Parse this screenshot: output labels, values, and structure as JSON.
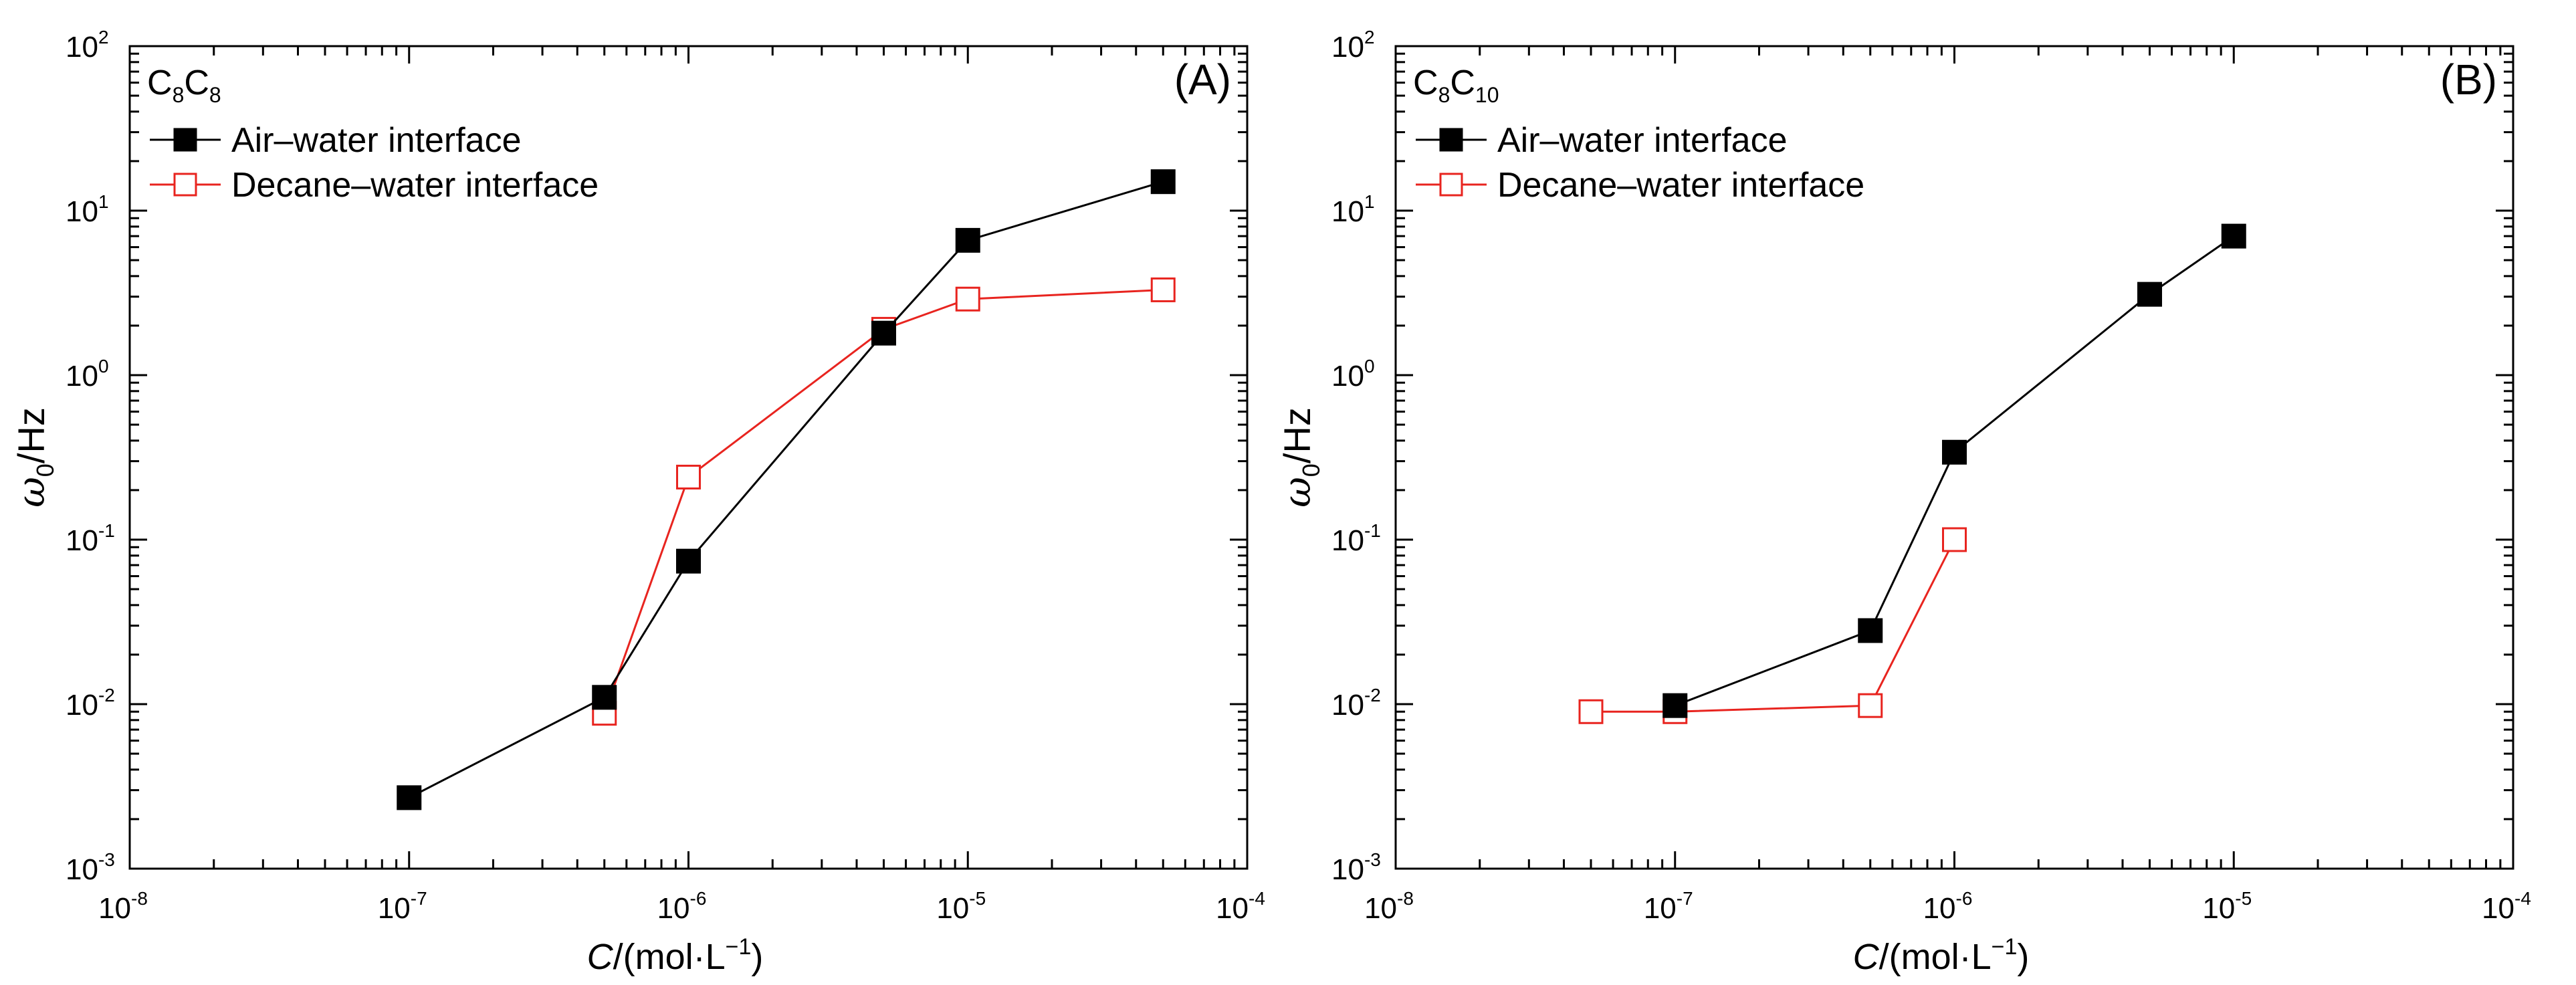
{
  "chart_data": [
    {
      "type": "line",
      "panel_label": "(A)",
      "system_label": "C8C8",
      "system_base": "C",
      "system_sub1": "8",
      "system_sub2": "8",
      "xscale": "log",
      "yscale": "log",
      "xlim": [
        1e-08,
        0.0001
      ],
      "ylim": [
        0.001,
        100
      ],
      "xlabel": "C/(mol·L−1)",
      "ylabel": "ω0/Hz",
      "x_ticks": [
        {
          "base": "10",
          "exp": "-8"
        },
        {
          "base": "10",
          "exp": "-7"
        },
        {
          "base": "10",
          "exp": "-6"
        },
        {
          "base": "10",
          "exp": "-5"
        },
        {
          "base": "10",
          "exp": "-4"
        }
      ],
      "y_ticks": [
        {
          "base": "10",
          "exp": "-3"
        },
        {
          "base": "10",
          "exp": "-2"
        },
        {
          "base": "10",
          "exp": "-1"
        },
        {
          "base": "10",
          "exp": "0"
        },
        {
          "base": "10",
          "exp": "1"
        },
        {
          "base": "10",
          "exp": "2"
        }
      ],
      "legend_position": "top-left",
      "series": [
        {
          "name": "Air–water interface",
          "color": "#000000",
          "marker": "filled-square",
          "x": [
            1e-07,
            5e-07,
            1e-06,
            5e-06,
            1e-05,
            5e-05
          ],
          "y": [
            0.0027,
            0.011,
            0.074,
            1.8,
            6.6,
            15.0
          ]
        },
        {
          "name": "Decane–water interface",
          "color": "#e8241f",
          "marker": "open-square",
          "x": [
            5e-07,
            1e-06,
            5e-06,
            1e-05,
            5e-05
          ],
          "y": [
            0.0088,
            0.24,
            1.9,
            2.9,
            3.3
          ]
        }
      ]
    },
    {
      "type": "line",
      "panel_label": "(B)",
      "system_label": "C8C10",
      "system_base": "C",
      "system_sub1": "8",
      "system_sub2": "10",
      "xscale": "log",
      "yscale": "log",
      "xlim": [
        1e-08,
        0.0001
      ],
      "ylim": [
        0.001,
        100
      ],
      "xlabel": "C/(mol·L−1)",
      "ylabel": "ω0/Hz",
      "x_ticks": [
        {
          "base": "10",
          "exp": "-8"
        },
        {
          "base": "10",
          "exp": "-7"
        },
        {
          "base": "10",
          "exp": "-6"
        },
        {
          "base": "10",
          "exp": "-5"
        },
        {
          "base": "10",
          "exp": "-4"
        }
      ],
      "y_ticks": [
        {
          "base": "10",
          "exp": "-3"
        },
        {
          "base": "10",
          "exp": "-2"
        },
        {
          "base": "10",
          "exp": "-1"
        },
        {
          "base": "10",
          "exp": "0"
        },
        {
          "base": "10",
          "exp": "1"
        },
        {
          "base": "10",
          "exp": "2"
        }
      ],
      "legend_position": "top-left",
      "series": [
        {
          "name": "Air–water interface",
          "color": "#000000",
          "marker": "filled-square",
          "x": [
            1e-07,
            5e-07,
            1e-06,
            5e-06,
            1e-05
          ],
          "y": [
            0.0098,
            0.028,
            0.34,
            3.1,
            7.0
          ]
        },
        {
          "name": "Decane–water interface",
          "color": "#e8241f",
          "marker": "open-square",
          "x": [
            5e-08,
            1e-07,
            5e-07,
            1e-06
          ],
          "y": [
            0.009,
            0.009,
            0.0098,
            0.1
          ]
        }
      ]
    }
  ]
}
